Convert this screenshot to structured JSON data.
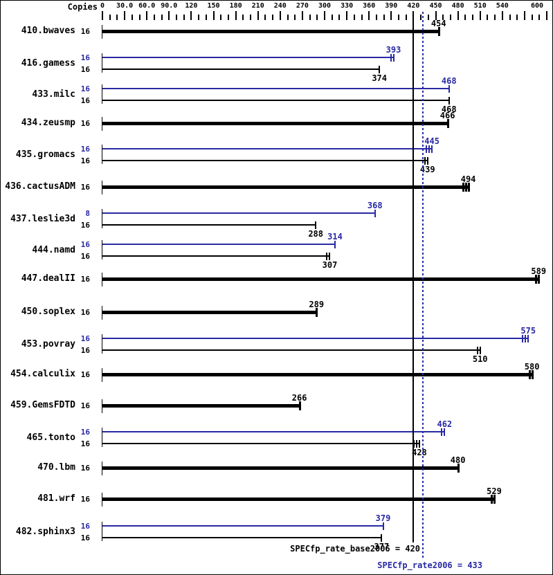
{
  "chart_data": {
    "type": "bar",
    "orientation": "horizontal",
    "copies_header": "Copies",
    "value_axis": {
      "min": 0,
      "max": 600,
      "major_step": 30,
      "minor_step": 10,
      "grid": false,
      "labels": [
        "0",
        "30.0",
        "60.0",
        "90.0",
        "120",
        "150",
        "180",
        "210",
        "240",
        "270",
        "300",
        "330",
        "360",
        "390",
        "420",
        "450",
        "480",
        "510",
        "540",
        "",
        "600"
      ]
    },
    "series_colors": {
      "base": "#000000",
      "peak": "#2929a3"
    },
    "benchmarks": [
      {
        "name": "410.bwaves",
        "bars": [
          {
            "series": "base",
            "copies": "16",
            "value": 454,
            "thick": true,
            "marks": 1
          }
        ]
      },
      {
        "name": "416.gamess",
        "bars": [
          {
            "series": "peak",
            "copies": "16",
            "value": 393,
            "thick": false,
            "marks": 2
          },
          {
            "series": "base",
            "copies": "16",
            "value": 374,
            "thick": false,
            "marks": 1
          }
        ]
      },
      {
        "name": "433.milc",
        "bars": [
          {
            "series": "peak",
            "copies": "16",
            "value": 468,
            "thick": false,
            "marks": 1
          },
          {
            "series": "base",
            "copies": "16",
            "value": 468,
            "thick": false,
            "marks": 1
          }
        ]
      },
      {
        "name": "434.zeusmp",
        "bars": [
          {
            "series": "base",
            "copies": "16",
            "value": 466,
            "thick": true,
            "marks": 1
          }
        ]
      },
      {
        "name": "435.gromacs",
        "bars": [
          {
            "series": "peak",
            "copies": "16",
            "value": 445,
            "thick": false,
            "marks": 3
          },
          {
            "series": "base",
            "copies": "16",
            "value": 439,
            "thick": false,
            "marks": 2
          }
        ]
      },
      {
        "name": "436.cactusADM",
        "bars": [
          {
            "series": "base",
            "copies": "16",
            "value": 494,
            "thick": true,
            "marks": 3
          }
        ]
      },
      {
        "name": "437.leslie3d",
        "bars": [
          {
            "series": "peak",
            "copies": "8",
            "value": 368,
            "thick": false,
            "marks": 1
          },
          {
            "series": "base",
            "copies": "16",
            "value": 288,
            "thick": false,
            "marks": 1
          }
        ]
      },
      {
        "name": "444.namd",
        "bars": [
          {
            "series": "peak",
            "copies": "16",
            "value": 314,
            "thick": false,
            "marks": 1
          },
          {
            "series": "base",
            "copies": "16",
            "value": 307,
            "thick": false,
            "marks": 2
          }
        ]
      },
      {
        "name": "447.dealII",
        "bars": [
          {
            "series": "base",
            "copies": "16",
            "value": 589,
            "thick": true,
            "marks": 2
          }
        ]
      },
      {
        "name": "450.soplex",
        "bars": [
          {
            "series": "base",
            "copies": "16",
            "value": 289,
            "thick": true,
            "marks": 1
          }
        ]
      },
      {
        "name": "453.povray",
        "bars": [
          {
            "series": "peak",
            "copies": "16",
            "value": 575,
            "thick": false,
            "marks": 3
          },
          {
            "series": "base",
            "copies": "16",
            "value": 510,
            "thick": false,
            "marks": 2
          }
        ]
      },
      {
        "name": "454.calculix",
        "bars": [
          {
            "series": "base",
            "copies": "16",
            "value": 580,
            "thick": true,
            "marks": 2
          }
        ]
      },
      {
        "name": "459.GemsFDTD",
        "bars": [
          {
            "series": "base",
            "copies": "16",
            "value": 266,
            "thick": true,
            "marks": 1
          }
        ]
      },
      {
        "name": "465.tonto",
        "bars": [
          {
            "series": "peak",
            "copies": "16",
            "value": 462,
            "thick": false,
            "marks": 2
          },
          {
            "series": "base",
            "copies": "16",
            "value": 428,
            "thick": false,
            "marks": 3
          }
        ]
      },
      {
        "name": "470.lbm",
        "bars": [
          {
            "series": "base",
            "copies": "16",
            "value": 480,
            "thick": true,
            "marks": 1
          }
        ]
      },
      {
        "name": "481.wrf",
        "bars": [
          {
            "series": "base",
            "copies": "16",
            "value": 529,
            "thick": true,
            "marks": 2
          }
        ]
      },
      {
        "name": "482.sphinx3",
        "bars": [
          {
            "series": "peak",
            "copies": "16",
            "value": 379,
            "thick": false,
            "marks": 1
          },
          {
            "series": "base",
            "copies": "16",
            "value": 377,
            "thick": false,
            "marks": 1
          }
        ]
      }
    ],
    "reference_lines": [
      {
        "label": "SPECfp_rate_base2006 = 420",
        "value": 420,
        "style": "solid",
        "color": "#000000"
      },
      {
        "label": "SPECfp_rate2006 = 433",
        "value": 433,
        "style": "dotted",
        "color": "#2929a3"
      }
    ]
  }
}
